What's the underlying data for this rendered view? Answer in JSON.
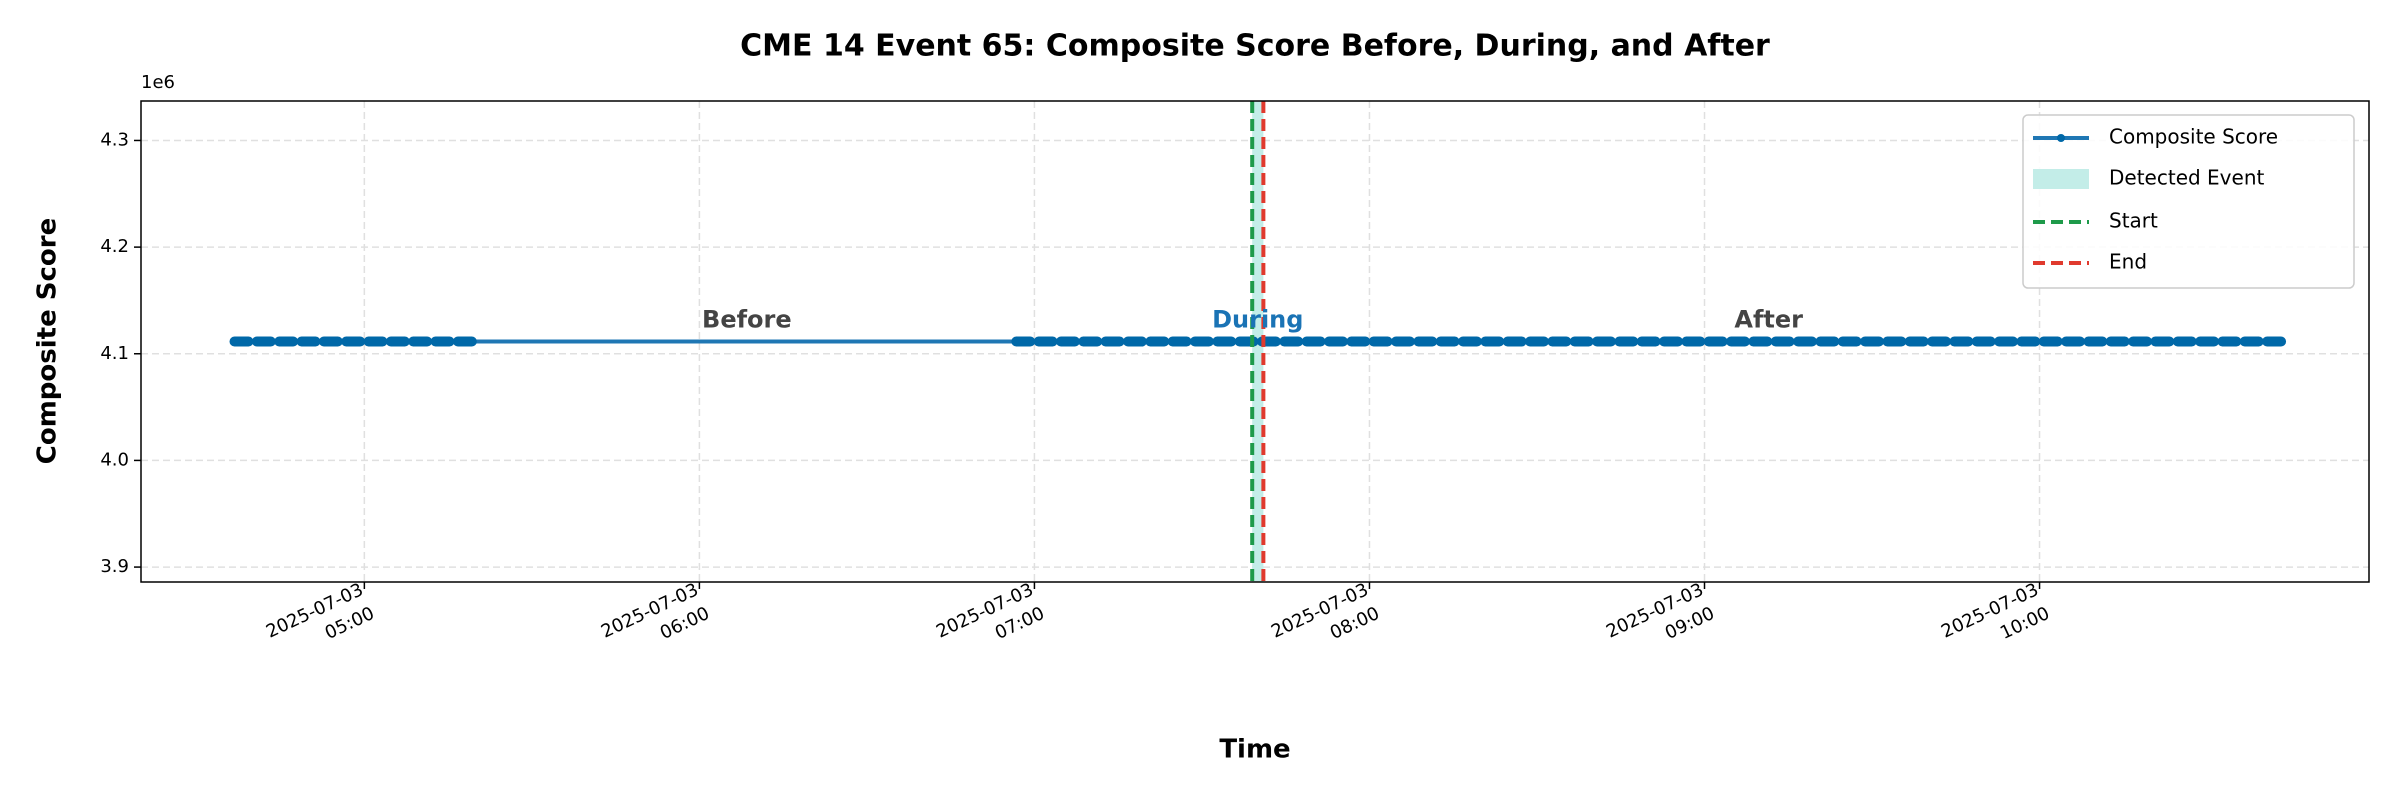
{
  "chart_data": {
    "type": "line",
    "title": "CME 14 Event 65: Composite Score Before, During, and After",
    "xlabel": "Time",
    "ylabel": "Composite Score",
    "y_offset_label": "1e6",
    "xlim": [
      "2025-07-03 04:20",
      "2025-07-03 10:59"
    ],
    "ylim": [
      3.886,
      4.337
    ],
    "yticks": [
      3.9,
      {
        "value": 4,
        "label": "4.0"
      },
      4.1,
      4.2,
      4.3
    ],
    "xticks": [
      {
        "value": "2025-07-03 05:00",
        "label": [
          "2025-07-03",
          "05:00"
        ]
      },
      {
        "value": "2025-07-03 06:00",
        "label": [
          "2025-07-03",
          "06:00"
        ]
      },
      {
        "value": "2025-07-03 07:00",
        "label": [
          "2025-07-03",
          "07:00"
        ]
      },
      {
        "value": "2025-07-03 08:00",
        "label": [
          "2025-07-03",
          "08:00"
        ]
      },
      {
        "value": "2025-07-03 09:00",
        "label": [
          "2025-07-03",
          "09:00"
        ]
      },
      {
        "value": "2025-07-03 10:00",
        "label": [
          "2025-07-03",
          "10:00"
        ]
      }
    ],
    "grid": true,
    "legend": "upper right",
    "series": [
      {
        "name": "Composite Score",
        "color": "#1f77b4",
        "marker_color": "#0068a8",
        "x": [
          "2025-07-03 04:38",
          "2025-07-03 04:42",
          "2025-07-03 04:46",
          "2025-07-03 04:50",
          "2025-07-03 04:54",
          "2025-07-03 04:58",
          "2025-07-03 05:02",
          "2025-07-03 05:06",
          "2025-07-03 05:10",
          "2025-07-03 05:14",
          "2025-07-03 05:18",
          "2025-07-03 06:58",
          "2025-07-03 07:02",
          "2025-07-03 07:06",
          "2025-07-03 07:10",
          "2025-07-03 07:14",
          "2025-07-03 07:18",
          "2025-07-03 07:22",
          "2025-07-03 07:26",
          "2025-07-03 07:30",
          "2025-07-03 07:34",
          "2025-07-03 07:38",
          "2025-07-03 07:42",
          "2025-07-03 07:46",
          "2025-07-03 07:50",
          "2025-07-03 07:54",
          "2025-07-03 07:58",
          "2025-07-03 08:02",
          "2025-07-03 08:06",
          "2025-07-03 08:10",
          "2025-07-03 08:14",
          "2025-07-03 08:18",
          "2025-07-03 08:22",
          "2025-07-03 08:26",
          "2025-07-03 08:30",
          "2025-07-03 08:34",
          "2025-07-03 08:38",
          "2025-07-03 08:42",
          "2025-07-03 08:46",
          "2025-07-03 08:50",
          "2025-07-03 08:54",
          "2025-07-03 08:58",
          "2025-07-03 09:02",
          "2025-07-03 09:06",
          "2025-07-03 09:10",
          "2025-07-03 09:14",
          "2025-07-03 09:18",
          "2025-07-03 09:22",
          "2025-07-03 09:26",
          "2025-07-03 09:30",
          "2025-07-03 09:34",
          "2025-07-03 09:38",
          "2025-07-03 09:42",
          "2025-07-03 09:46",
          "2025-07-03 09:50",
          "2025-07-03 09:54",
          "2025-07-03 09:58",
          "2025-07-03 10:02",
          "2025-07-03 10:06",
          "2025-07-03 10:10",
          "2025-07-03 10:14",
          "2025-07-03 10:18",
          "2025-07-03 10:22",
          "2025-07-03 10:26",
          "2025-07-03 10:30",
          "2025-07-03 10:34",
          "2025-07-03 10:38",
          "2025-07-03 10:42"
        ],
        "values": [
          4.1115,
          4.1115,
          4.1115,
          4.1115,
          4.1115,
          4.1115,
          4.1115,
          4.1115,
          4.1115,
          4.1115,
          4.1115,
          4.1115,
          4.1115,
          4.1115,
          4.1115,
          4.1115,
          4.1115,
          4.1115,
          4.1115,
          4.1115,
          4.1115,
          4.1115,
          4.1115,
          4.1115,
          4.1115,
          4.1115,
          4.1115,
          4.1115,
          4.1115,
          4.1115,
          4.1115,
          4.1115,
          4.1115,
          4.1115,
          4.1115,
          4.1115,
          4.1115,
          4.1115,
          4.1115,
          4.1115,
          4.1115,
          4.1115,
          4.1115,
          4.1115,
          4.1115,
          4.1115,
          4.1115,
          4.1115,
          4.1115,
          4.1115,
          4.1115,
          4.1115,
          4.1115,
          4.1115,
          4.1115,
          4.1115,
          4.1115,
          4.1115,
          4.1115,
          4.1115,
          4.1115,
          4.1115,
          4.1115,
          4.1115,
          4.1115,
          4.1115,
          4.1115,
          4.1115
        ]
      }
    ],
    "event": {
      "label": "Detected Event",
      "color": "#c3ede8"
    },
    "start": {
      "label": "Start",
      "x": "2025-07-03 07:39",
      "color": "#1e9a4a"
    },
    "end": {
      "label": "End",
      "x": "2025-07-03 07:41",
      "color": "#e03a2e"
    },
    "annotations": [
      "Before",
      "During",
      "After"
    ]
  }
}
